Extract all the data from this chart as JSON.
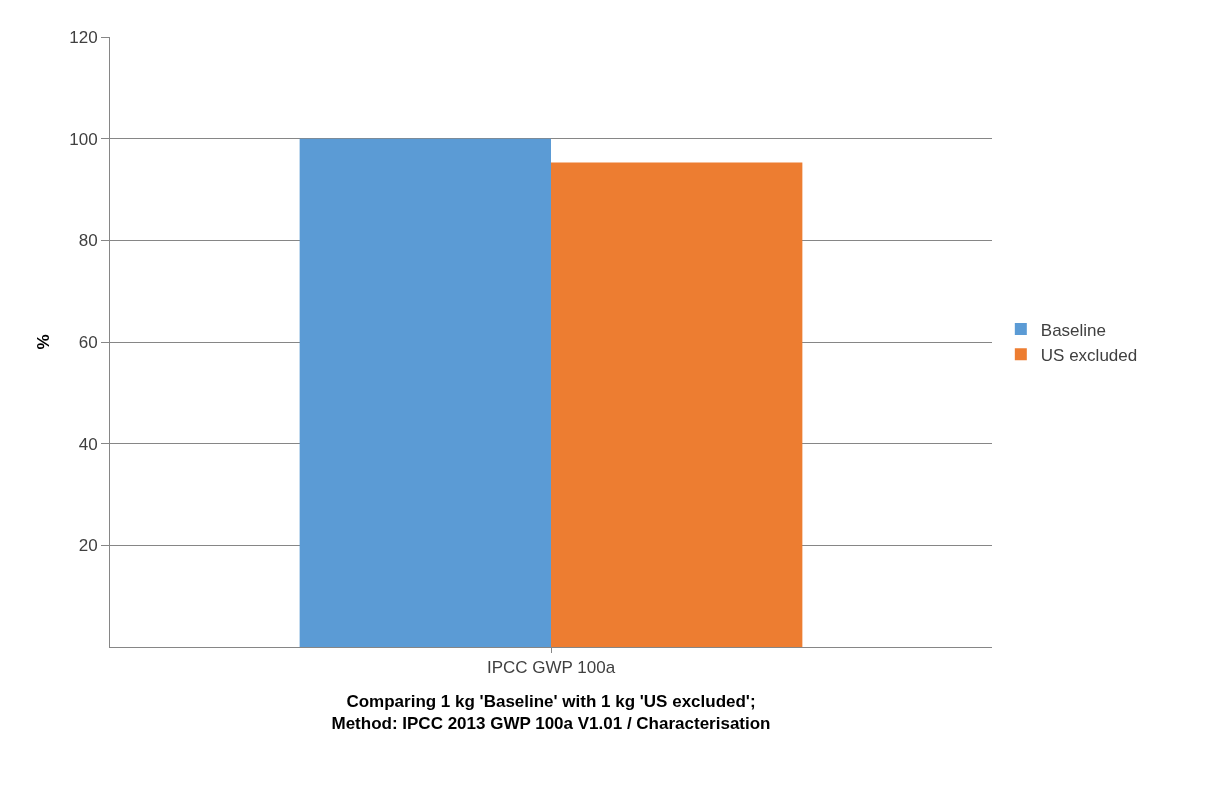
{
  "chart_data": {
    "type": "bar",
    "categories": [
      "IPCC GWP 100a"
    ],
    "series": [
      {
        "name": "Baseline",
        "color": "#5b9bd5",
        "values": [
          100
        ]
      },
      {
        "name": "US excluded",
        "color": "#ed7d31",
        "values": [
          95.3
        ]
      }
    ],
    "xlabel": "Comparing 1 kg 'Baseline' with 1 kg 'US excluded';\nMethod: IPCC 2013 GWP 100a V1.01 / Characterisation",
    "ylabel": "%",
    "ylim": [
      0,
      120
    ],
    "yticks": [
      20,
      40,
      60,
      80,
      100,
      120
    ],
    "grid": "y",
    "legend": "right"
  }
}
